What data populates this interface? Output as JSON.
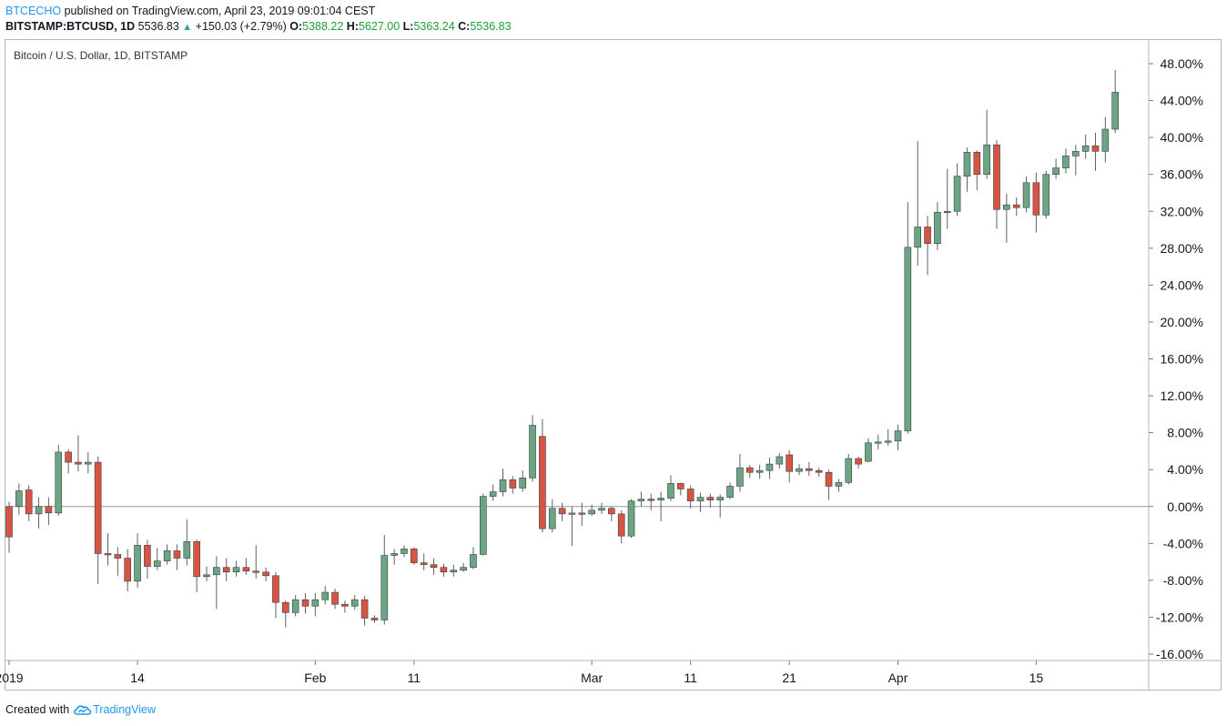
{
  "header": {
    "author": "BTCECHO",
    "published_text": "published on TradingView.com, April 23, 2019 09:01:04 CEST",
    "symbol": "BITSTAMP:BTCUSD, 1D",
    "last": "5536.83",
    "change": "+150.03 (+2.79%)",
    "o_label": "O:",
    "o_value": "5388.22",
    "h_label": "H:",
    "h_value": "5627.00",
    "l_label": "L:",
    "l_value": "5363.24",
    "c_label": "C:",
    "c_value": "5536.83"
  },
  "symbol_label": "Bitcoin / U.S. Dollar, 1D, BITSTAMP",
  "footer": {
    "created_with": "Created with",
    "brand": "TradingView"
  },
  "colors": {
    "up": "#6ba583",
    "down": "#d75442",
    "wick": "#5d606b",
    "grid_zero": "#9598a1",
    "text": "#131722"
  },
  "chart_data": {
    "type": "candlestick",
    "title": "Bitcoin / U.S. Dollar, 1D, BITSTAMP",
    "y_unit": "% change",
    "ylim": [
      -16,
      48
    ],
    "y_ticks": [
      "48.00%",
      "44.00%",
      "40.00%",
      "36.00%",
      "32.00%",
      "28.00%",
      "24.00%",
      "20.00%",
      "16.00%",
      "12.00%",
      "8.00%",
      "4.00%",
      "0.00%",
      "-4.00%",
      "-8.00%",
      "-12.00%",
      "-16.00%"
    ],
    "x_ticks": [
      {
        "label": "2019",
        "bar": 0
      },
      {
        "label": "14",
        "bar": 13
      },
      {
        "label": "Feb",
        "bar": 31
      },
      {
        "label": "11",
        "bar": 41
      },
      {
        "label": "Mar",
        "bar": 59
      },
      {
        "label": "11",
        "bar": 69
      },
      {
        "label": "21",
        "bar": 79
      },
      {
        "label": "Apr",
        "bar": 90
      },
      {
        "label": "15",
        "bar": 104
      }
    ],
    "candles": [
      [
        0,
        -3.3,
        -5,
        0.5
      ],
      [
        0,
        1.7,
        -0.9,
        2.5
      ],
      [
        1.8,
        -0.8,
        -1.6,
        2.3
      ],
      [
        -0.8,
        0,
        -2.4,
        1
      ],
      [
        0,
        -0.7,
        -2,
        1
      ],
      [
        -0.7,
        5.9,
        -1,
        6.7
      ],
      [
        5.9,
        4.8,
        3.6,
        6.2
      ],
      [
        4.8,
        4.6,
        3.8,
        7.7
      ],
      [
        4.6,
        4.8,
        3.6,
        5.9
      ],
      [
        4.8,
        -5.1,
        -8.4,
        5.4
      ],
      [
        -5.1,
        -5.2,
        -6.4,
        -2.9
      ],
      [
        -5.2,
        -5.6,
        -7.5,
        -4.4
      ],
      [
        -5.6,
        -8.1,
        -9.2,
        -4.6
      ],
      [
        -8.1,
        -4.2,
        -8.8,
        -2.9
      ],
      [
        -4.2,
        -6.5,
        -7.8,
        -3.6
      ],
      [
        -6.5,
        -5.9,
        -6.9,
        -4.5
      ],
      [
        -5.9,
        -4.8,
        -6.3,
        -4.1
      ],
      [
        -4.8,
        -5.6,
        -6.9,
        -4.1
      ],
      [
        -5.6,
        -3.8,
        -6.4,
        -1.4
      ],
      [
        -3.8,
        -7.6,
        -9.3,
        -3.6
      ],
      [
        -7.6,
        -7.4,
        -8.1,
        -6.5
      ],
      [
        -7.4,
        -6.6,
        -11.1,
        -5.4
      ],
      [
        -6.6,
        -7.1,
        -8.1,
        -5.6
      ],
      [
        -7.1,
        -6.6,
        -7.6,
        -5.9
      ],
      [
        -6.6,
        -7,
        -7.4,
        -5.6
      ],
      [
        -7,
        -7.1,
        -7.8,
        -4.2
      ],
      [
        -7.1,
        -7.5,
        -8.1,
        -6.6
      ],
      [
        -7.5,
        -10.4,
        -12.1,
        -7.1
      ],
      [
        -10.4,
        -11.5,
        -13.1,
        -10.2
      ],
      [
        -11.5,
        -10.1,
        -11.9,
        -9.6
      ],
      [
        -10.1,
        -10.8,
        -11.6,
        -9.4
      ],
      [
        -10.8,
        -10.1,
        -11.9,
        -9.4
      ],
      [
        -10.1,
        -9.3,
        -10.6,
        -8.6
      ],
      [
        -9.3,
        -10.6,
        -11.1,
        -8.9
      ],
      [
        -10.6,
        -10.8,
        -11.5,
        -10.2
      ],
      [
        -10.8,
        -10.1,
        -11.2,
        -9.6
      ],
      [
        -10.1,
        -12.1,
        -12.9,
        -9.7
      ],
      [
        -12.1,
        -12.3,
        -12.6,
        -11.8
      ],
      [
        -12.3,
        -5.3,
        -12.8,
        -3.1
      ],
      [
        -5.3,
        -5.1,
        -6.3,
        -4.6
      ],
      [
        -5.1,
        -4.6,
        -5.5,
        -4.2
      ],
      [
        -4.6,
        -6.1,
        -6.3,
        -4.4
      ],
      [
        -6.1,
        -6.3,
        -6.9,
        -5.1
      ],
      [
        -6.3,
        -6.6,
        -7.4,
        -5.6
      ],
      [
        -6.6,
        -7.1,
        -7.6,
        -6.2
      ],
      [
        -7.1,
        -6.9,
        -7.6,
        -6.3
      ],
      [
        -6.9,
        -6.6,
        -7.1,
        -6.1
      ],
      [
        -6.6,
        -5.2,
        -6.8,
        -4.4
      ],
      [
        -5.2,
        1.1,
        -5.3,
        1.4
      ],
      [
        1.1,
        1.6,
        0.6,
        2.4
      ],
      [
        1.6,
        2.9,
        1.1,
        4.1
      ],
      [
        2.9,
        2,
        1.4,
        3.3
      ],
      [
        2,
        3.1,
        1.6,
        3.9
      ],
      [
        3.1,
        8.8,
        2.7,
        9.9
      ],
      [
        7.6,
        -2.4,
        -2.8,
        9.5
      ],
      [
        -2.4,
        -0.2,
        -2.8,
        0.8
      ],
      [
        -0.2,
        -0.8,
        -1.6,
        0.4
      ],
      [
        -0.8,
        -0.7,
        -4.3,
        0
      ],
      [
        -0.7,
        -0.8,
        -2.1,
        0.4
      ],
      [
        -0.8,
        -0.4,
        -1,
        0.2
      ],
      [
        -0.4,
        -0.2,
        -0.8,
        0.4
      ],
      [
        -0.2,
        -0.8,
        -1.6,
        0
      ],
      [
        -0.8,
        -3.2,
        -4,
        -0.4
      ],
      [
        -3.2,
        0.6,
        -3.4,
        0.8
      ],
      [
        0.6,
        0.8,
        0,
        1.6
      ],
      [
        0.8,
        0.7,
        -0.4,
        1.4
      ],
      [
        0.7,
        0.9,
        -1.6,
        1.6
      ],
      [
        0.9,
        2.5,
        0.6,
        3.4
      ],
      [
        2.5,
        1.9,
        1.2,
        2.6
      ],
      [
        1.9,
        0.6,
        -0.2,
        2.3
      ],
      [
        0.6,
        1,
        -0.6,
        1.5
      ],
      [
        1,
        0.7,
        -0.1,
        1.4
      ],
      [
        0.7,
        1,
        -1.2,
        1.3
      ],
      [
        1,
        2.2,
        0.8,
        2.6
      ],
      [
        2.2,
        4.2,
        1.6,
        5.7
      ],
      [
        4.2,
        3.7,
        3.1,
        4.5
      ],
      [
        3.7,
        3.9,
        3,
        4.5
      ],
      [
        3.9,
        4.6,
        3,
        5.3
      ],
      [
        4.6,
        5.4,
        4.1,
        5.8
      ],
      [
        5.6,
        3.8,
        2.6,
        6.1
      ],
      [
        3.8,
        4.1,
        3.4,
        4.6
      ],
      [
        4.1,
        3.9,
        3.3,
        4.8
      ],
      [
        3.9,
        3.7,
        3.2,
        4.2
      ],
      [
        3.7,
        2.2,
        0.7,
        4
      ],
      [
        2.2,
        2.6,
        1.6,
        3
      ],
      [
        2.6,
        5.2,
        2.4,
        5.7
      ],
      [
        5.2,
        4.6,
        4.1,
        5.4
      ],
      [
        4.9,
        6.9,
        4.8,
        7.4
      ],
      [
        6.9,
        7,
        6.2,
        7.8
      ],
      [
        7,
        7.1,
        6.6,
        8.4
      ],
      [
        7.1,
        8.2,
        6.1,
        8.9
      ],
      [
        8.2,
        28.1,
        7.9,
        33
      ],
      [
        28.1,
        30.3,
        26.1,
        39.6
      ],
      [
        30.3,
        28.5,
        25.1,
        31.5
      ],
      [
        28.5,
        31.9,
        27.8,
        33
      ],
      [
        31.9,
        32,
        30.1,
        36.6
      ],
      [
        32,
        35.8,
        31.5,
        37.2
      ],
      [
        35.8,
        38.4,
        34.1,
        38.9
      ],
      [
        38.4,
        36,
        34.3,
        38.6
      ],
      [
        36,
        39.2,
        35.5,
        43
      ],
      [
        39.2,
        32.2,
        30.1,
        39.7
      ],
      [
        32.2,
        32.7,
        28.6,
        33.9
      ],
      [
        32.7,
        32.4,
        31.5,
        33.5
      ],
      [
        32.4,
        35.1,
        31.9,
        35.8
      ],
      [
        35.1,
        31.6,
        29.7,
        36.2
      ],
      [
        31.6,
        36,
        31.2,
        36.4
      ],
      [
        36,
        36.7,
        35.5,
        37.7
      ],
      [
        36.7,
        38,
        36.1,
        38.8
      ],
      [
        38,
        38.5,
        35.9,
        39.2
      ],
      [
        38.5,
        39.1,
        37.7,
        40.3
      ],
      [
        39.1,
        38.5,
        36.4,
        40.5
      ],
      [
        38.5,
        40.9,
        37.3,
        42.2
      ],
      [
        40.9,
        44.9,
        40.5,
        47.3
      ]
    ]
  }
}
